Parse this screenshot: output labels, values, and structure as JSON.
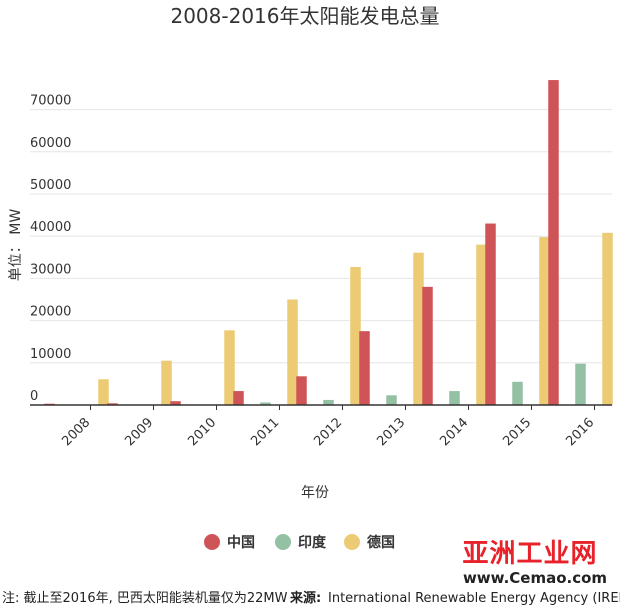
{
  "chart_data": {
    "type": "bar",
    "title": "2008-2016年太阳能发电总量",
    "xlabel": "年份",
    "ylabel": "单位：  MW",
    "categories": [
      "2008",
      "2009",
      "2010",
      "2011",
      "2012",
      "2013",
      "2014",
      "2015",
      "2016"
    ],
    "yticks": [
      "0",
      "10000",
      "20000",
      "30000",
      "40000",
      "50000",
      "60000",
      "70000"
    ],
    "ylim": [
      0,
      80000
    ],
    "legend_position": "bottom",
    "grid": true,
    "series": [
      {
        "name": "中国",
        "color": "#cf5457",
        "values": [
          300,
          400,
          900,
          3300,
          6800,
          17500,
          28000,
          43000,
          77000
        ]
      },
      {
        "name": "印度",
        "color": "#94c1a4",
        "values": [
          0,
          0,
          100,
          600,
          1200,
          2300,
          3300,
          5500,
          9800
        ]
      },
      {
        "name": "德国",
        "color": "#eccb74",
        "values": [
          6100,
          10500,
          17700,
          25000,
          32700,
          36100,
          38000,
          39800,
          40800
        ]
      }
    ]
  },
  "footnote": {
    "note": "注: 截止至2016年, 巴西太阳能装机量仅为22MW",
    "source_label": "来源:",
    "source_text": "International Renewable Energy Agency (IRENA)"
  },
  "watermark": {
    "main": "亚洲工业网",
    "sub": "www.Cemao.com"
  }
}
